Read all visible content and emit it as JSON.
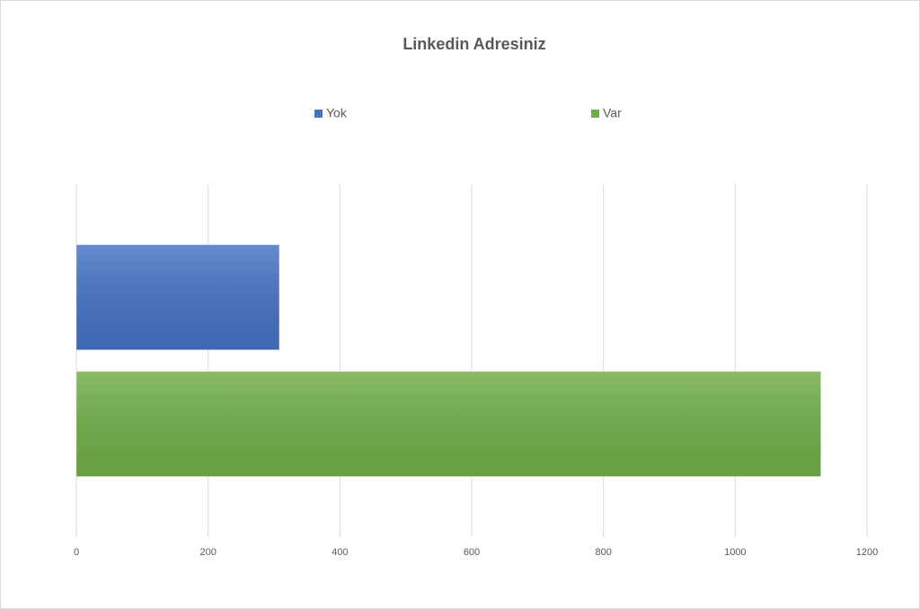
{
  "chart_data": {
    "type": "hbar",
    "title": "Linkedin Adresiniz",
    "categories": [
      null
    ],
    "series": [
      {
        "name": "Yok",
        "color": "#4472c4",
        "values": [
          308
        ]
      },
      {
        "name": "Var",
        "color": "#70ad47",
        "values": [
          1130
        ]
      }
    ],
    "xlim": [
      0,
      1200
    ],
    "xticks": [
      0,
      200,
      400,
      600,
      800,
      1000,
      1200
    ],
    "grid": true,
    "legend": "top"
  }
}
